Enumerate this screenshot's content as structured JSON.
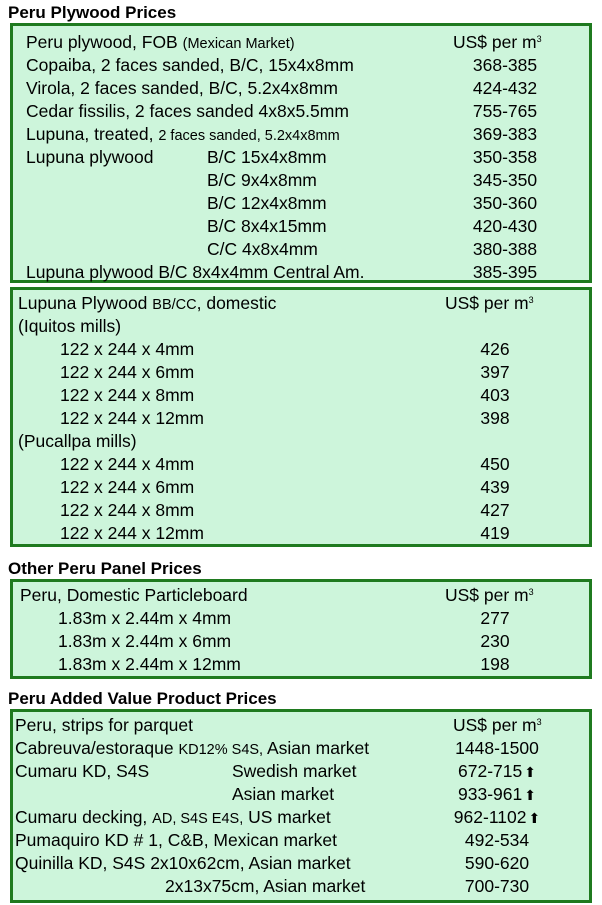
{
  "sections": [
    {
      "title": "Peru Plywood Prices",
      "unit": "US$ per m",
      "unit_sup": "3",
      "header": {
        "label": "Peru plywood, FOB",
        "note": "(Mexican Market)"
      },
      "rows": [
        {
          "label": "Copaiba, 2 faces sanded, B/C, 15x4x8mm",
          "value": "368-385"
        },
        {
          "label": "Virola, 2 faces sanded, B/C, 5.2x4x8mm",
          "value": "424-432"
        },
        {
          "label": "Cedar fissilis, 2 faces sanded 4x8x5.5mm",
          "value": "755-765"
        },
        {
          "label": "Lupuna, treated,",
          "note": "2 faces sanded, 5.2x4x8mm",
          "value": "369-383"
        },
        {
          "label": "Lupuna plywood",
          "grade": "B/C 15x4x8mm",
          "value": "350-358"
        },
        {
          "grade": "B/C 9x4x8mm",
          "value": "345-350"
        },
        {
          "grade": "B/C 12x4x8mm",
          "value": "350-360"
        },
        {
          "grade": "B/C 8x4x15mm",
          "value": "420-430"
        },
        {
          "grade": "C/C 4x8x4mm",
          "value": "380-388"
        },
        {
          "label": "Lupuna plywood B/C 8x4x4mm Central Am.",
          "value": "385-395"
        }
      ]
    },
    {
      "unit": "US$ per m",
      "unit_sup": "3",
      "header": {
        "label": "Lupuna Plywood",
        "note": "BB/CC",
        "label2": ", domestic"
      },
      "rows": [
        {
          "label": "(Iquitos mills)"
        },
        {
          "size": "122 x 244 x 4mm",
          "value": "426"
        },
        {
          "size": "122 x 244 x 6mm",
          "value": "397"
        },
        {
          "size": "122 x 244 x 8mm",
          "value": "403"
        },
        {
          "size": "122 x 244 x 12mm",
          "value": "398"
        },
        {
          "label": "(Pucallpa mills)"
        },
        {
          "size": "122 x 244 x 4mm",
          "value": "450"
        },
        {
          "size": "122 x 244 x 6mm",
          "value": "439"
        },
        {
          "size": "122 x 244 x 8mm",
          "value": "427"
        },
        {
          "size": "122 x 244 x 12mm",
          "value": "419"
        }
      ]
    },
    {
      "title": "Other Peru Panel Prices",
      "unit": "US$ per m",
      "unit_sup": "3",
      "header": {
        "label": "Peru, Domestic Particleboard"
      },
      "rows": [
        {
          "size": "1.83m x 2.44m x 4mm",
          "value": "277"
        },
        {
          "size": "1.83m x 2.44m x 6mm",
          "value": "230"
        },
        {
          "size": "1.83m x 2.44m x 12mm",
          "value": "198"
        }
      ]
    },
    {
      "title": "Peru Added Value Product Prices",
      "unit": "US$ per m",
      "unit_sup": "3",
      "header": {
        "label": "Peru, strips for parquet"
      },
      "rows": [
        {
          "label": "Cabreuva/estoraque",
          "note": "KD12% S4S,",
          "label2": "Asian market",
          "value": "1448-1500"
        },
        {
          "label": "Cumaru KD, S4S",
          "market": "Swedish market",
          "value": "672-715",
          "trend": "up"
        },
        {
          "market": "Asian market",
          "value": "933-961",
          "trend": "up"
        },
        {
          "label": "Cumaru decking,",
          "note": "AD, S4S E4S,",
          "label2": "US market",
          "value": "962-1102",
          "trend": "up"
        },
        {
          "label": "Pumaquiro KD # 1, C&B,  Mexican market",
          "value": "492-534"
        },
        {
          "label": "Quinilla KD, S4S 2x10x62cm,  Asian market",
          "value": "590-620"
        },
        {
          "market": "2x13x75cm, Asian market",
          "value": "700-730"
        }
      ]
    }
  ],
  "colors": {
    "border": "#1f7a1f",
    "background": "#cdf5db"
  },
  "trend_icon": "up-arrow-icon"
}
